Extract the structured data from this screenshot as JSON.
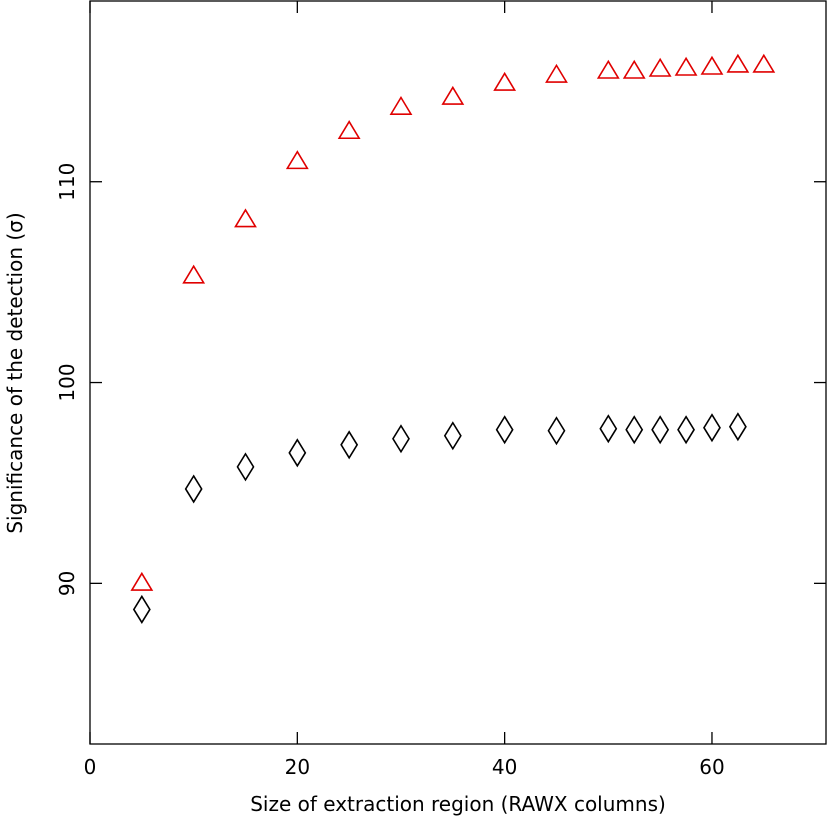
{
  "chart_data": {
    "type": "scatter",
    "title": "",
    "xlabel": "Size of extraction region (RAWX columns)",
    "ylabel": "Significance of the detection (σ)",
    "xlim": [
      0,
      71
    ],
    "ylim": [
      82,
      119
    ],
    "x_ticks": [
      0,
      20,
      40,
      60
    ],
    "y_ticks": [
      90,
      100,
      110
    ],
    "x_tick_labels": [
      "0",
      "20",
      "40",
      "60"
    ],
    "y_tick_labels": [
      "90",
      "100",
      "110"
    ],
    "grid": false,
    "legend": "none",
    "series": [
      {
        "marker": "triangle",
        "color": "#e00000",
        "points": [
          {
            "x": 5,
            "y": 90.0
          },
          {
            "x": 10,
            "y": 105.3
          },
          {
            "x": 15,
            "y": 108.1
          },
          {
            "x": 20,
            "y": 111.0
          },
          {
            "x": 25,
            "y": 112.5
          },
          {
            "x": 30,
            "y": 113.7
          },
          {
            "x": 35,
            "y": 114.2
          },
          {
            "x": 40,
            "y": 114.9
          },
          {
            "x": 45,
            "y": 115.3
          },
          {
            "x": 50,
            "y": 115.5
          },
          {
            "x": 52.5,
            "y": 115.5
          },
          {
            "x": 55,
            "y": 115.6
          },
          {
            "x": 57.5,
            "y": 115.65
          },
          {
            "x": 60,
            "y": 115.7
          },
          {
            "x": 62.5,
            "y": 115.8
          },
          {
            "x": 65,
            "y": 115.8
          }
        ]
      },
      {
        "marker": "diamond",
        "color": "#000000",
        "points": [
          {
            "x": 5,
            "y": 88.7
          },
          {
            "x": 10,
            "y": 94.7
          },
          {
            "x": 15,
            "y": 95.8
          },
          {
            "x": 20,
            "y": 96.5
          },
          {
            "x": 25,
            "y": 96.9
          },
          {
            "x": 30,
            "y": 97.2
          },
          {
            "x": 35,
            "y": 97.35
          },
          {
            "x": 40,
            "y": 97.65
          },
          {
            "x": 45,
            "y": 97.6
          },
          {
            "x": 50,
            "y": 97.7
          },
          {
            "x": 52.5,
            "y": 97.65
          },
          {
            "x": 55,
            "y": 97.65
          },
          {
            "x": 57.5,
            "y": 97.65
          },
          {
            "x": 60,
            "y": 97.75
          },
          {
            "x": 62.5,
            "y": 97.8
          }
        ]
      }
    ]
  }
}
